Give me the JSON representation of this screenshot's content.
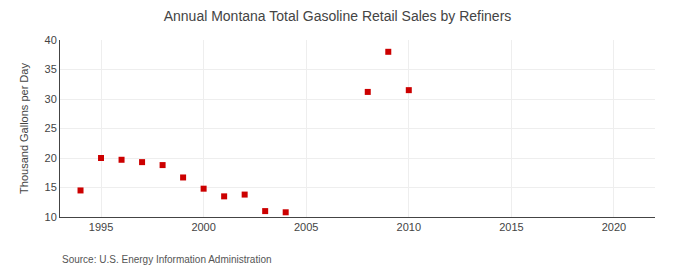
{
  "chart_data": {
    "type": "scatter",
    "title": "Annual Montana Total Gasoline Retail Sales by Refiners",
    "y_label": "Thousand Gallons per Day",
    "annotations": [
      "Source: U.S. Energy Information Administration"
    ],
    "x": [
      1994,
      1995,
      1996,
      1997,
      1998,
      1999,
      2000,
      2001,
      2002,
      2003,
      2004,
      2008,
      2009,
      2010
    ],
    "values": [
      14.5,
      20.0,
      19.7,
      19.3,
      18.8,
      16.7,
      14.8,
      13.5,
      13.8,
      11.0,
      10.8,
      31.2,
      38.0,
      31.5
    ],
    "color": "#cc0000",
    "marker": "square",
    "xlim": [
      1993,
      2022
    ],
    "ylim": [
      10,
      40
    ],
    "xticks": [
      1995,
      2000,
      2005,
      2010,
      2015,
      2020
    ],
    "yticks": [
      10,
      15,
      20,
      25,
      30,
      35,
      40
    ],
    "grid": true
  }
}
